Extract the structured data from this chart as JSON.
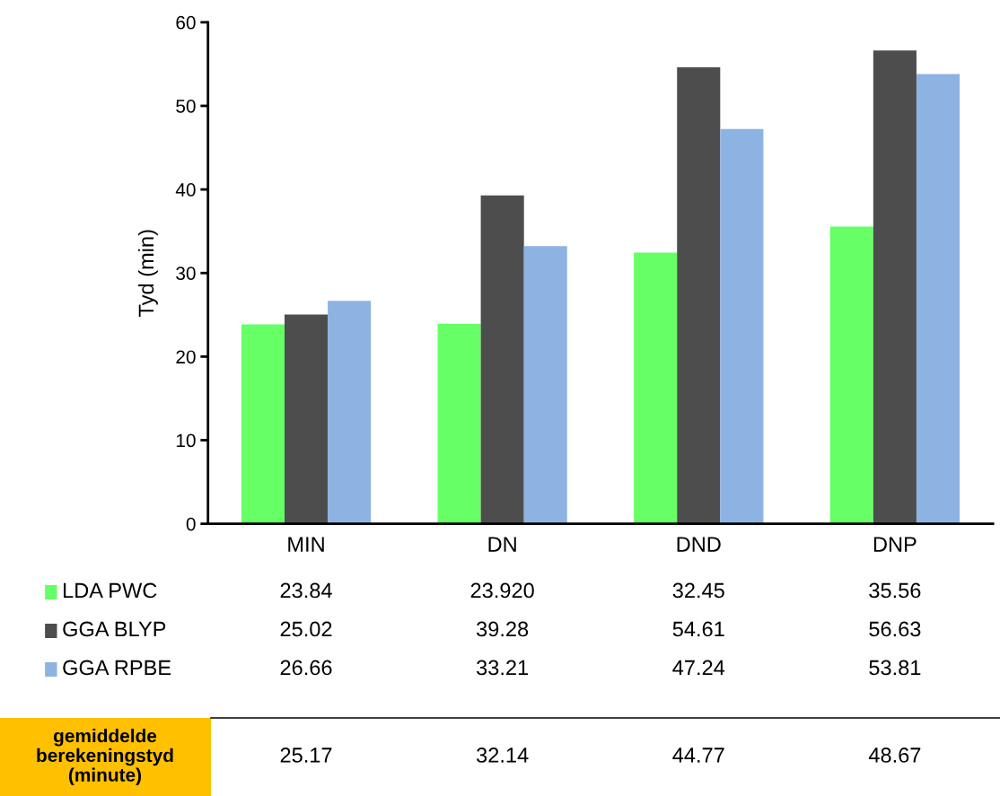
{
  "chart_data": {
    "type": "bar",
    "ylabel": "Tyd (min)",
    "categories": [
      "MIN",
      "DN",
      "DND",
      "DNP"
    ],
    "series": [
      {
        "name": "LDA PWC",
        "color": "#66ff66",
        "values": [
          23.84,
          23.92,
          32.45,
          35.56
        ],
        "value_labels": [
          "23.84",
          "23.920",
          "32.45",
          "35.56"
        ]
      },
      {
        "name": "GGA BLYP",
        "color": "#4d4d4d",
        "values": [
          25.02,
          39.28,
          54.61,
          56.63
        ],
        "value_labels": [
          "25.02",
          "39.28",
          "54.61",
          "56.63"
        ]
      },
      {
        "name": "GGA RPBE",
        "color": "#8db3e2",
        "values": [
          26.66,
          33.21,
          47.24,
          53.81
        ],
        "value_labels": [
          "26.66",
          "33.21",
          "47.24",
          "53.81"
        ]
      }
    ],
    "ylim": [
      0,
      60
    ],
    "yticks": [
      0,
      10,
      20,
      30,
      40,
      50,
      60
    ],
    "grid": false,
    "legend": "bottom left",
    "annotations": [
      "gemiddelde berekeningstyd (minute)",
      "25.17",
      "32.14",
      "44.77",
      "48.67"
    ]
  }
}
